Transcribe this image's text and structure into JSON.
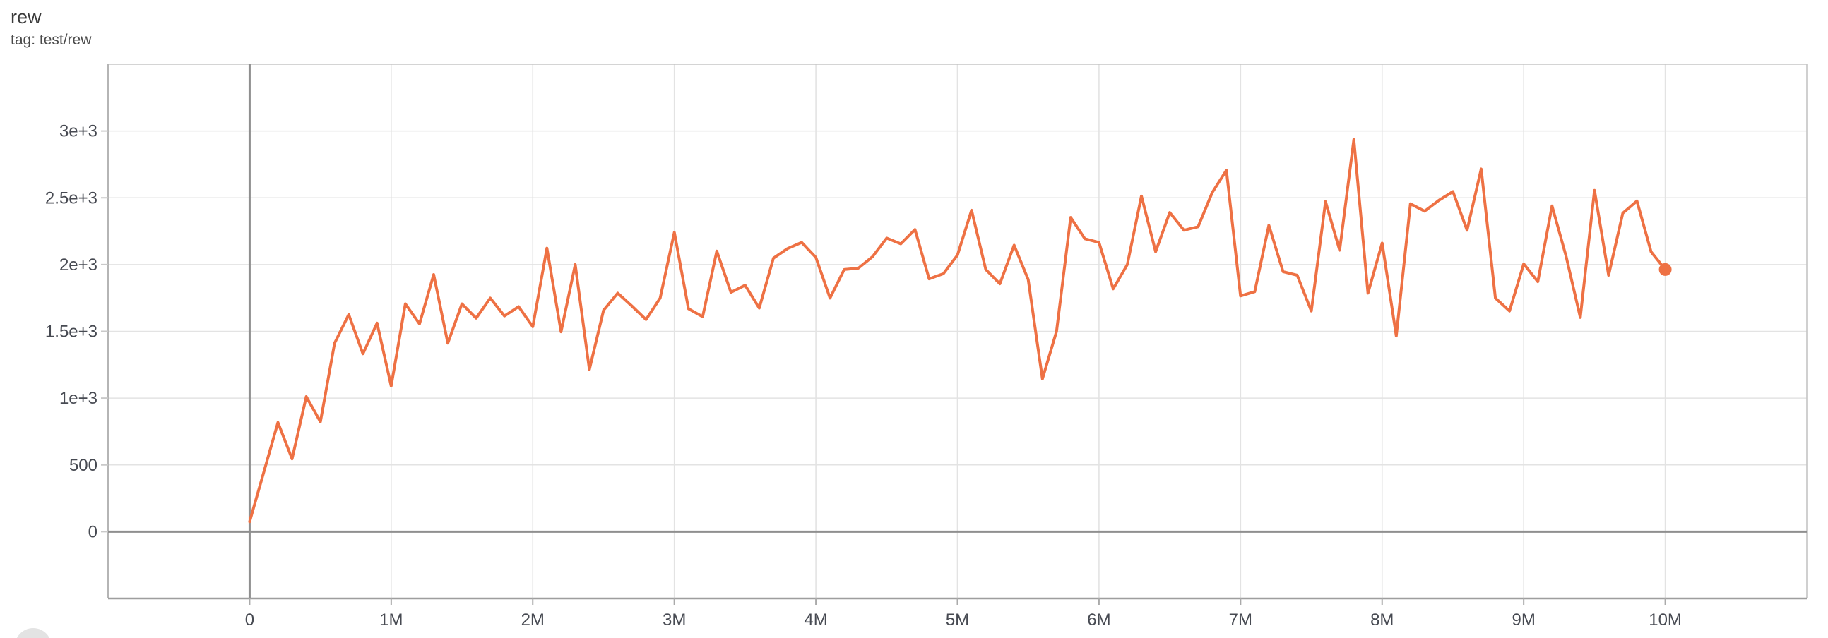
{
  "card": {
    "title": "rew",
    "tag_line": "tag: test/rew"
  },
  "colors": {
    "line": "#ee7144",
    "grid": "#e3e3e3",
    "zero_axis": "#8f8f8f",
    "border": "#c5c5c5",
    "left_border": "#b5b5b5",
    "bottom_axis": "#9e9e9e",
    "tick_mark": "#aaaaaa",
    "y_tick_dash": "#c9c9c9",
    "tick_label": "#474a52",
    "fab": "#e3e3e3"
  },
  "chart_data": {
    "type": "line",
    "title": "rew",
    "subtitle": "tag: test/rew",
    "series_name": "test/rew",
    "xlabel": "",
    "ylabel": "",
    "grid": true,
    "legend": "none",
    "x_range": [
      -1000000,
      11000000
    ],
    "y_range": [
      -500,
      3500
    ],
    "x_ticks": [
      {
        "value": 0,
        "label": "0"
      },
      {
        "value": 1000000,
        "label": "1M"
      },
      {
        "value": 2000000,
        "label": "2M"
      },
      {
        "value": 3000000,
        "label": "3M"
      },
      {
        "value": 4000000,
        "label": "4M"
      },
      {
        "value": 5000000,
        "label": "5M"
      },
      {
        "value": 6000000,
        "label": "6M"
      },
      {
        "value": 7000000,
        "label": "7M"
      },
      {
        "value": 8000000,
        "label": "8M"
      },
      {
        "value": 9000000,
        "label": "9M"
      },
      {
        "value": 10000000,
        "label": "10M"
      }
    ],
    "y_ticks": [
      {
        "value": 0,
        "label": "0"
      },
      {
        "value": 500,
        "label": "500"
      },
      {
        "value": 1000,
        "label": "1e+3"
      },
      {
        "value": 1500,
        "label": "1.5e+3"
      },
      {
        "value": 2000,
        "label": "2e+3"
      },
      {
        "value": 2500,
        "label": "2.5e+3"
      },
      {
        "value": 3000,
        "label": "3e+3"
      }
    ],
    "endpoint_marker": true,
    "points": [
      [
        0,
        75
      ],
      [
        100000,
        447
      ],
      [
        200000,
        818
      ],
      [
        300000,
        545
      ],
      [
        400000,
        1011
      ],
      [
        500000,
        823
      ],
      [
        600000,
        1412
      ],
      [
        700000,
        1626
      ],
      [
        800000,
        1332
      ],
      [
        900000,
        1562
      ],
      [
        1000000,
        1091
      ],
      [
        1100000,
        1706
      ],
      [
        1200000,
        1556
      ],
      [
        1300000,
        1925
      ],
      [
        1400000,
        1412
      ],
      [
        1500000,
        1706
      ],
      [
        1600000,
        1599
      ],
      [
        1700000,
        1749
      ],
      [
        1800000,
        1615
      ],
      [
        1900000,
        1685
      ],
      [
        2000000,
        1535
      ],
      [
        2100000,
        2123
      ],
      [
        2200000,
        1497
      ],
      [
        2300000,
        2000
      ],
      [
        2400000,
        1214
      ],
      [
        2500000,
        1658
      ],
      [
        2600000,
        1786
      ],
      [
        2700000,
        1690
      ],
      [
        2800000,
        1588
      ],
      [
        2900000,
        1749
      ],
      [
        3000000,
        2241
      ],
      [
        3100000,
        1669
      ],
      [
        3200000,
        1610
      ],
      [
        3300000,
        2101
      ],
      [
        3400000,
        1792
      ],
      [
        3500000,
        1845
      ],
      [
        3600000,
        1674
      ],
      [
        3700000,
        2048
      ],
      [
        3800000,
        2120
      ],
      [
        3900000,
        2166
      ],
      [
        4000000,
        2053
      ],
      [
        4100000,
        1749
      ],
      [
        4200000,
        1963
      ],
      [
        4300000,
        1973
      ],
      [
        4400000,
        2059
      ],
      [
        4500000,
        2198
      ],
      [
        4600000,
        2155
      ],
      [
        4700000,
        2262
      ],
      [
        4800000,
        1893
      ],
      [
        4900000,
        1931
      ],
      [
        5000000,
        2070
      ],
      [
        5100000,
        2407
      ],
      [
        5200000,
        1963
      ],
      [
        5300000,
        1856
      ],
      [
        5400000,
        2145
      ],
      [
        5500000,
        1888
      ],
      [
        5600000,
        1144
      ],
      [
        5700000,
        1500
      ],
      [
        5800000,
        2353
      ],
      [
        5900000,
        2193
      ],
      [
        6000000,
        2166
      ],
      [
        6100000,
        1818
      ],
      [
        6200000,
        2000
      ],
      [
        6300000,
        2513
      ],
      [
        6400000,
        2096
      ],
      [
        6500000,
        2390
      ],
      [
        6600000,
        2257
      ],
      [
        6700000,
        2283
      ],
      [
        6800000,
        2540
      ],
      [
        6900000,
        2706
      ],
      [
        7000000,
        1765
      ],
      [
        7100000,
        1797
      ],
      [
        7200000,
        2294
      ],
      [
        7300000,
        1947
      ],
      [
        7400000,
        1920
      ],
      [
        7500000,
        1652
      ],
      [
        7600000,
        2471
      ],
      [
        7700000,
        2107
      ],
      [
        7800000,
        2936
      ],
      [
        7900000,
        1786
      ],
      [
        8000000,
        2161
      ],
      [
        8100000,
        1465
      ],
      [
        8200000,
        2455
      ],
      [
        8300000,
        2400
      ],
      [
        8400000,
        2480
      ],
      [
        8500000,
        2546
      ],
      [
        8600000,
        2257
      ],
      [
        8700000,
        2716
      ],
      [
        8800000,
        1749
      ],
      [
        8900000,
        1652
      ],
      [
        9000000,
        2005
      ],
      [
        9100000,
        1872
      ],
      [
        9200000,
        2439
      ],
      [
        9300000,
        2060
      ],
      [
        9400000,
        1604
      ],
      [
        9500000,
        2556
      ],
      [
        9600000,
        1920
      ],
      [
        9700000,
        2385
      ],
      [
        9800000,
        2476
      ],
      [
        9900000,
        2096
      ],
      [
        10000000,
        1963
      ]
    ]
  }
}
